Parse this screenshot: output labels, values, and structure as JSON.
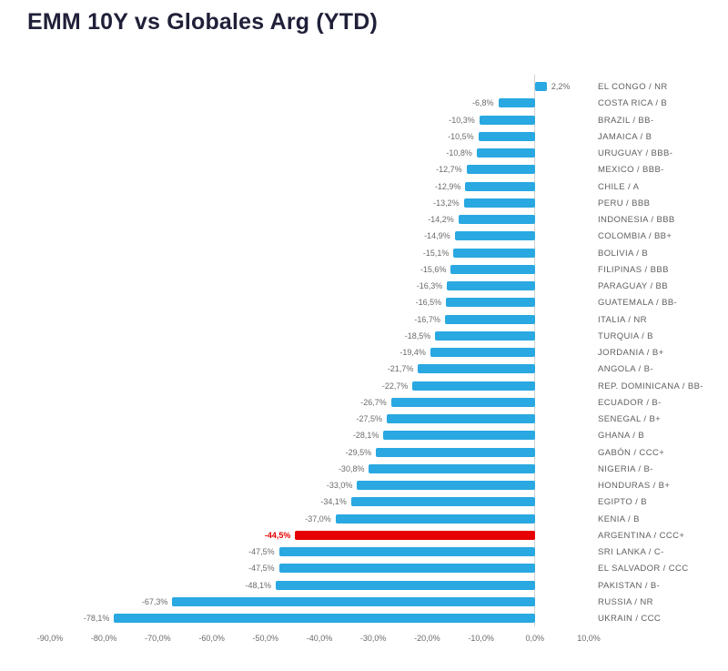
{
  "title": "EMM 10Y vs Globales Arg (YTD)",
  "chart_data": {
    "type": "bar",
    "orientation": "horizontal",
    "title": "EMM 10Y vs Globales Arg (YTD)",
    "categories": [
      "EL CONGO / NR",
      "COSTA RICA / B",
      "BRAZIL / BB-",
      "JAMAICA / B",
      "URUGUAY / BBB-",
      "MEXICO / BBB-",
      "CHILE / A",
      "PERU / BBB",
      "INDONESIA / BBB",
      "COLOMBIA / BB+",
      "BOLIVIA / B",
      "FILIPINAS / BBB",
      "PARAGUAY / BB",
      "GUATEMALA / BB-",
      "ITALIA / NR",
      "TURQUIA / B",
      "JORDANIA / B+",
      "ANGOLA / B-",
      "REP. DOMINICANA / BB-",
      "ECUADOR / B-",
      "SENEGAL / B+",
      "GHANA / B",
      "GABÓN / CCC+",
      "NIGERIA / B-",
      "HONDURAS / B+",
      "EGIPTO / B",
      "KENIA / B",
      "ARGENTINA / CCC+",
      "SRI LANKA / C-",
      "EL SALVADOR / CCC",
      "PAKISTAN / B-",
      "RUSSIA / NR",
      "UKRAIN / CCC"
    ],
    "values": [
      2.2,
      -6.8,
      -10.3,
      -10.5,
      -10.8,
      -12.7,
      -12.9,
      -13.2,
      -14.2,
      -14.9,
      -15.1,
      -15.6,
      -16.3,
      -16.5,
      -16.7,
      -18.5,
      -19.4,
      -21.7,
      -22.7,
      -26.7,
      -27.5,
      -28.1,
      -29.5,
      -30.8,
      -33.0,
      -34.1,
      -37.0,
      -44.5,
      -47.5,
      -47.5,
      -48.1,
      -67.3,
      -78.1
    ],
    "value_labels": [
      "2,2%",
      "-6,8%",
      "-10,3%",
      "-10,5%",
      "-10,8%",
      "-12,7%",
      "-12,9%",
      "-13,2%",
      "-14,2%",
      "-14,9%",
      "-15,1%",
      "-15,6%",
      "-16,3%",
      "-16,5%",
      "-16,7%",
      "-18,5%",
      "-19,4%",
      "-21,7%",
      "-22,7%",
      "-26,7%",
      "-27,5%",
      "-28,1%",
      "-29,5%",
      "-30,8%",
      "-33,0%",
      "-34,1%",
      "-37,0%",
      "-44,5%",
      "-47,5%",
      "-47,5%",
      "-48,1%",
      "-67,3%",
      "-78,1%"
    ],
    "highlight_index": 27,
    "highlight_category": "ARGENTINA / CCC+",
    "bar_color": "#29a8e1",
    "highlight_color": "#e60000",
    "xlim": [
      -90,
      10
    ],
    "x_ticks": [
      "-90,0%",
      "-80,0%",
      "-70,0%",
      "-60,0%",
      "-50,0%",
      "-40,0%",
      "-30,0%",
      "-20,0%",
      "-10,0%",
      "0,0%",
      "10,0%"
    ],
    "legend": "none",
    "grid": "none"
  }
}
